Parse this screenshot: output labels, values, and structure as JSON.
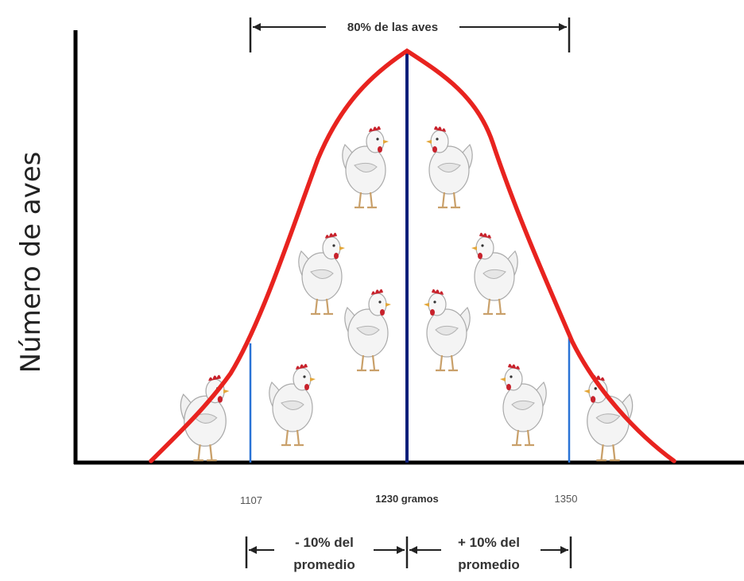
{
  "y_axis_label": "Número de aves",
  "top_bracket_label": "80% de las aves",
  "x_ticks": {
    "left": "1107",
    "center": "1230 gramos",
    "right": "1350"
  },
  "bottom_brackets": {
    "left_line1": "- 10% del",
    "left_line2": "promedio",
    "right_line1": "+ 10% del",
    "right_line2": "promedio"
  },
  "colors": {
    "curve": "#e8231f",
    "mean_line": "#0d1f7a",
    "bound_lines": "#2a73d6",
    "axis": "#000000"
  },
  "icons": [
    "chicken-icon"
  ]
}
